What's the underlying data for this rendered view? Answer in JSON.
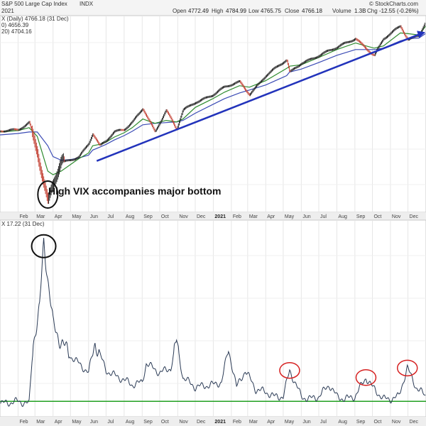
{
  "header": {
    "title": "S&P 500 Large Cap Index",
    "exchange": "INDX",
    "date_text": "2021",
    "open_label": "Open",
    "open_value": "4772.49",
    "high_label": "High",
    "high_value": "4784.99",
    "low_label": "Low",
    "low_value": "4765.75",
    "close_label": "Close",
    "close_value": "4766.18",
    "volume_label": "Volume",
    "volume_value": "1.3B",
    "chg_label": "Chg",
    "chg_value": "-12.55 (-0.26%)",
    "watermark": "© StockCharts.com"
  },
  "legend": {
    "main": "X (Daily) 4766.18 (31 Dec)",
    "ma1": "0) 4656.39",
    "ma2": "20) 4704.16",
    "vix": "X 17.22 (31 Dec)"
  },
  "annotation": "High VIX accompanies major bottom",
  "colors": {
    "price_up": "#1a1a1a",
    "price_down": "#c0392b",
    "ma_short": "#2e8b2e",
    "ma_long": "#3b4bb5",
    "trend_arrow": "#2233bb",
    "vix_line": "#2a3a55",
    "vix_baseline": "#22a022",
    "circle_black": "#111111",
    "circle_red": "#d62020"
  },
  "chart_data": [
    {
      "type": "line",
      "title": "S&P 500 Large Cap Index",
      "dates": [
        "2020-01-01",
        "2020-02-01",
        "2020-02-20",
        "2020-03-05",
        "2020-03-23",
        "2020-04-01",
        "2020-04-15",
        "2020-05-01",
        "2020-05-15",
        "2020-06-01",
        "2020-06-08",
        "2020-06-20",
        "2020-07-01",
        "2020-07-15",
        "2020-08-01",
        "2020-08-15",
        "2020-09-02",
        "2020-09-23",
        "2020-10-12",
        "2020-10-30",
        "2020-11-10",
        "2020-12-01",
        "2020-12-31",
        "2021-01-20",
        "2021-02-15",
        "2021-03-04",
        "2021-04-01",
        "2021-05-07",
        "2021-05-12",
        "2021-06-01",
        "2021-07-01",
        "2021-08-01",
        "2021-09-02",
        "2021-10-04",
        "2021-10-20",
        "2021-11-18",
        "2021-12-01",
        "2021-12-20",
        "2021-12-31"
      ],
      "values": [
        3240,
        3270,
        3380,
        3020,
        2240,
        2500,
        2800,
        2850,
        2900,
        3090,
        3230,
        3050,
        3115,
        3230,
        3270,
        3380,
        3580,
        3240,
        3530,
        3270,
        3545,
        3660,
        3750,
        3850,
        3935,
        3770,
        4020,
        4230,
        4060,
        4200,
        4300,
        4400,
        4540,
        4300,
        4520,
        4700,
        4520,
        4590,
        4766
      ],
      "series": [
        {
          "name": "Price",
          "values": "values"
        },
        {
          "name": "MA short",
          "values": [
            3240,
            3260,
            3300,
            3180,
            2700,
            2650,
            2700,
            2790,
            2870,
            2950,
            3050,
            3070,
            3100,
            3170,
            3230,
            3300,
            3420,
            3360,
            3400,
            3380,
            3420,
            3580,
            3700,
            3790,
            3880,
            3860,
            3950,
            4120,
            4150,
            4170,
            4270,
            4380,
            4470,
            4400,
            4430,
            4610,
            4600,
            4580,
            4700
          ]
        },
        {
          "name": "MA long",
          "values": [
            3200,
            3220,
            3240,
            3240,
            3050,
            2900,
            2850,
            2860,
            2880,
            2920,
            2990,
            3030,
            3070,
            3130,
            3190,
            3250,
            3340,
            3360,
            3370,
            3380,
            3400,
            3500,
            3620,
            3700,
            3780,
            3820,
            3890,
            4020,
            4070,
            4110,
            4200,
            4300,
            4380,
            4380,
            4400,
            4500,
            4530,
            4540,
            4600
          ]
        }
      ],
      "annotation_arrow": {
        "from": "2020-06-15",
        "to": "2021-12-31"
      },
      "x_tick_labels": [
        "Feb",
        "Mar",
        "Apr",
        "May",
        "Jun",
        "Jul",
        "Aug",
        "Sep",
        "Oct",
        "Nov",
        "Dec",
        "2021",
        "Feb",
        "Mar",
        "Apr",
        "May",
        "Jun",
        "Jul",
        "Aug",
        "Sep",
        "Oct",
        "Nov",
        "Dec"
      ],
      "ylim": [
        2150,
        4800
      ]
    },
    {
      "type": "line",
      "title": "VIX",
      "dates": [
        "2020-01-01",
        "2020-02-01",
        "2020-02-20",
        "2020-02-27",
        "2020-03-09",
        "2020-03-16",
        "2020-03-25",
        "2020-04-01",
        "2020-04-15",
        "2020-05-01",
        "2020-05-15",
        "2020-06-01",
        "2020-06-12",
        "2020-07-01",
        "2020-07-15",
        "2020-08-01",
        "2020-08-15",
        "2020-09-01",
        "2020-09-08",
        "2020-10-01",
        "2020-10-20",
        "2020-10-30",
        "2020-11-10",
        "2020-12-01",
        "2020-12-31",
        "2021-01-15",
        "2021-01-27",
        "2021-02-10",
        "2021-02-25",
        "2021-03-15",
        "2021-04-01",
        "2021-04-15",
        "2021-05-01",
        "2021-05-12",
        "2021-06-01",
        "2021-06-15",
        "2021-07-01",
        "2021-07-19",
        "2021-08-01",
        "2021-08-15",
        "2021-09-01",
        "2021-09-20",
        "2021-10-01",
        "2021-10-20",
        "2021-11-01",
        "2021-11-15",
        "2021-11-30",
        "2021-12-15",
        "2021-12-31"
      ],
      "values": [
        14,
        15,
        14,
        40,
        54,
        82,
        63,
        47,
        40,
        34,
        31,
        27,
        40,
        28,
        26,
        24,
        22,
        23,
        31,
        27,
        29,
        40,
        25,
        21,
        22,
        23,
        37,
        21,
        28,
        20,
        19,
        17,
        17,
        28,
        17,
        16,
        17,
        22,
        17,
        16,
        17,
        25,
        21,
        16,
        16,
        17,
        29,
        21,
        17.22
      ],
      "baseline": 15,
      "ylim": [
        10,
        90
      ],
      "x_tick_labels": [
        "Feb",
        "Mar",
        "Apr",
        "May",
        "Jun",
        "Jul",
        "Aug",
        "Sep",
        "Oct",
        "Nov",
        "Dec",
        "2021",
        "Feb",
        "Mar",
        "Apr",
        "May",
        "Jun",
        "Jul",
        "Aug",
        "Sep",
        "Oct",
        "Nov",
        "Dec"
      ],
      "highlight_dates": [
        "2020-03-16",
        "2021-05-12",
        "2021-09-20",
        "2021-11-30"
      ]
    }
  ]
}
